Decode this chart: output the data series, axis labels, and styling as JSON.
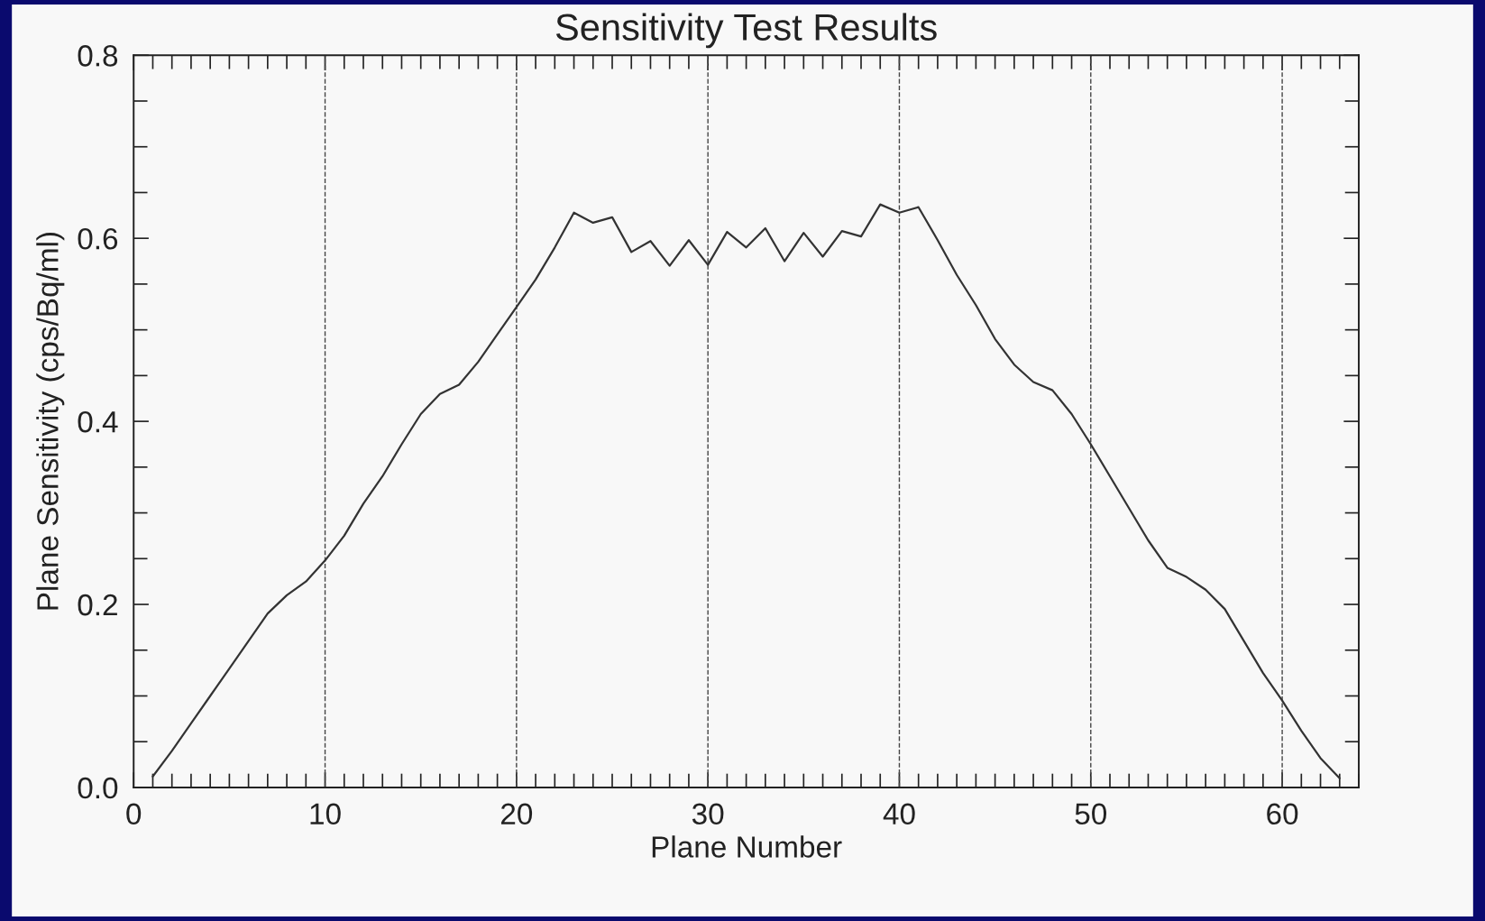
{
  "chart_data": {
    "type": "line",
    "title": "Sensitivity Test Results",
    "xlabel": "Plane Number",
    "ylabel": "Plane Sensitivity (cps/Bq/ml)",
    "x": [
      1,
      2,
      3,
      4,
      5,
      6,
      7,
      8,
      9,
      10,
      11,
      12,
      13,
      14,
      15,
      16,
      17,
      18,
      19,
      20,
      21,
      22,
      23,
      24,
      25,
      26,
      27,
      28,
      29,
      30,
      31,
      32,
      33,
      34,
      35,
      36,
      37,
      38,
      39,
      40,
      41,
      42,
      43,
      44,
      45,
      46,
      47,
      48,
      49,
      50,
      51,
      52,
      53,
      54,
      55,
      56,
      57,
      58,
      59,
      60,
      61,
      62,
      63
    ],
    "series": [
      {
        "color": "#333333",
        "values": [
          0.012,
          0.04,
          0.07,
          0.1,
          0.13,
          0.16,
          0.19,
          0.21,
          0.225,
          0.248,
          0.275,
          0.31,
          0.34,
          0.375,
          0.408,
          0.43,
          0.44,
          0.465,
          0.495,
          0.525,
          0.555,
          0.59,
          0.628,
          0.617,
          0.623,
          0.585,
          0.597,
          0.57,
          0.598,
          0.571,
          0.607,
          0.59,
          0.611,
          0.575,
          0.606,
          0.58,
          0.608,
          0.602,
          0.637,
          0.628,
          0.634,
          0.598,
          0.56,
          0.527,
          0.49,
          0.462,
          0.443,
          0.434,
          0.408,
          0.375,
          0.34,
          0.305,
          0.27,
          0.24,
          0.23,
          0.216,
          0.195,
          0.16,
          0.125,
          0.095,
          0.062,
          0.032,
          0.01
        ]
      }
    ],
    "xlim": [
      0,
      64
    ],
    "ylim": [
      0,
      0.8
    ],
    "xticks": [
      0,
      {
        "value": 1,
        "label": null
      },
      {
        "value": 2,
        "label": null
      },
      {
        "value": 3,
        "label": null
      },
      {
        "value": 4,
        "label": null
      },
      {
        "value": 5,
        "label": null
      },
      {
        "value": 6,
        "label": null
      },
      {
        "value": 7,
        "label": null
      },
      {
        "value": 8,
        "label": null
      },
      {
        "value": 9,
        "label": null
      },
      10,
      {
        "value": 11,
        "label": null
      },
      {
        "value": 12,
        "label": null
      },
      {
        "value": 13,
        "label": null
      },
      {
        "value": 14,
        "label": null
      },
      {
        "value": 15,
        "label": null
      },
      {
        "value": 16,
        "label": null
      },
      {
        "value": 17,
        "label": null
      },
      {
        "value": 18,
        "label": null
      },
      {
        "value": 19,
        "label": null
      },
      20,
      {
        "value": 21,
        "label": null
      },
      {
        "value": 22,
        "label": null
      },
      {
        "value": 23,
        "label": null
      },
      {
        "value": 24,
        "label": null
      },
      {
        "value": 25,
        "label": null
      },
      {
        "value": 26,
        "label": null
      },
      {
        "value": 27,
        "label": null
      },
      {
        "value": 28,
        "label": null
      },
      {
        "value": 29,
        "label": null
      },
      30,
      {
        "value": 31,
        "label": null
      },
      {
        "value": 32,
        "label": null
      },
      {
        "value": 33,
        "label": null
      },
      {
        "value": 34,
        "label": null
      },
      {
        "value": 35,
        "label": null
      },
      {
        "value": 36,
        "label": null
      },
      {
        "value": 37,
        "label": null
      },
      {
        "value": 38,
        "label": null
      },
      {
        "value": 39,
        "label": null
      },
      40,
      {
        "value": 41,
        "label": null
      },
      {
        "value": 42,
        "label": null
      },
      {
        "value": 43,
        "label": null
      },
      {
        "value": 44,
        "label": null
      },
      {
        "value": 45,
        "label": null
      },
      {
        "value": 46,
        "label": null
      },
      {
        "value": 47,
        "label": null
      },
      {
        "value": 48,
        "label": null
      },
      {
        "value": 49,
        "label": null
      },
      50,
      {
        "value": 51,
        "label": null
      },
      {
        "value": 52,
        "label": null
      },
      {
        "value": 53,
        "label": null
      },
      {
        "value": 54,
        "label": null
      },
      {
        "value": 55,
        "label": null
      },
      {
        "value": 56,
        "label": null
      },
      {
        "value": 57,
        "label": null
      },
      {
        "value": 58,
        "label": null
      },
      {
        "value": 59,
        "label": null
      },
      60,
      {
        "value": 61,
        "label": null
      },
      {
        "value": 62,
        "label": null
      },
      {
        "value": 63,
        "label": null
      },
      {
        "value": 64,
        "label": null
      }
    ],
    "yticks": [
      {
        "value": 0,
        "label": "0.0"
      },
      {
        "value": 0.05,
        "label": null
      },
      {
        "value": 0.1,
        "label": null
      },
      {
        "value": 0.15,
        "label": null
      },
      {
        "value": 0.2,
        "label": "0.2"
      },
      {
        "value": 0.25,
        "label": null
      },
      {
        "value": 0.3,
        "label": null
      },
      {
        "value": 0.35,
        "label": null
      },
      {
        "value": 0.4,
        "label": "0.4"
      },
      {
        "value": 0.45,
        "label": null
      },
      {
        "value": 0.5,
        "label": null
      },
      {
        "value": 0.55,
        "label": null
      },
      {
        "value": 0.6,
        "label": "0.6"
      },
      {
        "value": 0.65,
        "label": null
      },
      {
        "value": 0.7,
        "label": null
      },
      {
        "value": 0.75,
        "label": null
      },
      {
        "value": 0.8,
        "label": "0.8"
      }
    ],
    "ref_lines": [
      {
        "axis": "x",
        "value": 10,
        "line_style": "dashed",
        "color": "#444444"
      },
      {
        "axis": "x",
        "value": 20,
        "line_style": "dashed",
        "color": "#444444"
      },
      {
        "axis": "x",
        "value": 30,
        "line_style": "dashed",
        "color": "#444444"
      },
      {
        "axis": "x",
        "value": 40,
        "line_style": "dashed",
        "color": "#444444"
      },
      {
        "axis": "x",
        "value": 50,
        "line_style": "dashed",
        "color": "#444444"
      },
      {
        "axis": "x",
        "value": 60,
        "line_style": "dashed",
        "color": "#444444"
      }
    ],
    "marker": "none",
    "line_style": "solid"
  }
}
